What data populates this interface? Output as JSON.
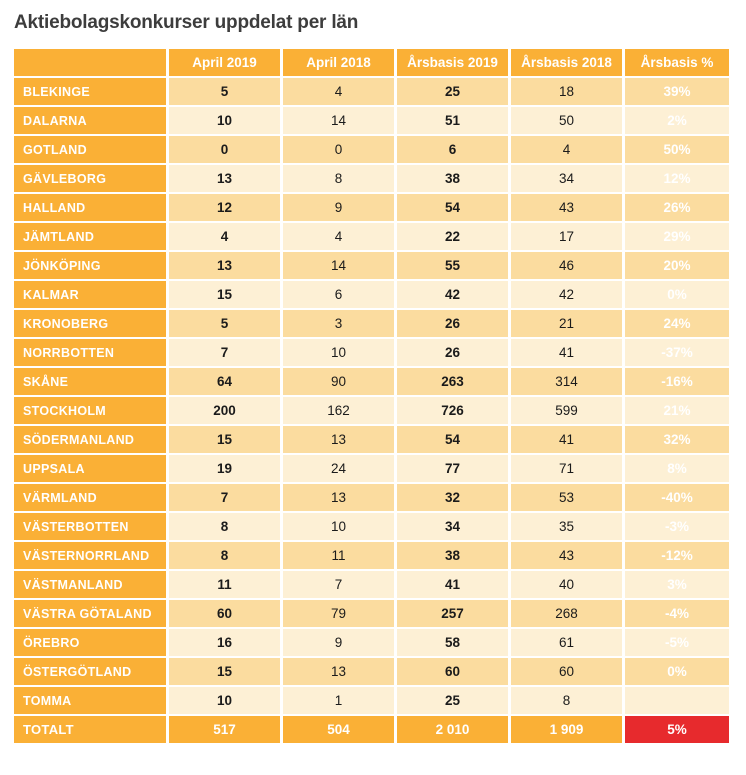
{
  "title": "Aktiebolagskonkurser uppdelat per län",
  "colors": {
    "orange": "#FAB036",
    "row_dark": "#FBDC9F",
    "row_light": "#FDF0D5",
    "red": "#E72A2D",
    "green": "#17A04C"
  },
  "chart_data": {
    "type": "table",
    "title": "Aktiebolagskonkurser uppdelat per län",
    "columns": [
      "April 2019",
      "April 2018",
      "Årsbasis 2019",
      "Årsbasis 2018",
      "Årsbasis %"
    ],
    "rows": [
      {
        "label": "BLEKINGE",
        "values": [
          "5",
          "4",
          "25",
          "18"
        ],
        "pct": "39%",
        "pct_status": "increase"
      },
      {
        "label": "DALARNA",
        "values": [
          "10",
          "14",
          "51",
          "50"
        ],
        "pct": "2%",
        "pct_status": "increase"
      },
      {
        "label": "GOTLAND",
        "values": [
          "0",
          "0",
          "6",
          "4"
        ],
        "pct": "50%",
        "pct_status": "increase"
      },
      {
        "label": "GÄVLEBORG",
        "values": [
          "13",
          "8",
          "38",
          "34"
        ],
        "pct": "12%",
        "pct_status": "increase"
      },
      {
        "label": "HALLAND",
        "values": [
          "12",
          "9",
          "54",
          "43"
        ],
        "pct": "26%",
        "pct_status": "increase"
      },
      {
        "label": "JÄMTLAND",
        "values": [
          "4",
          "4",
          "22",
          "17"
        ],
        "pct": "29%",
        "pct_status": "increase"
      },
      {
        "label": "JÖNKÖPING",
        "values": [
          "13",
          "14",
          "55",
          "46"
        ],
        "pct": "20%",
        "pct_status": "increase"
      },
      {
        "label": "KALMAR",
        "values": [
          "15",
          "6",
          "42",
          "42"
        ],
        "pct": "0%",
        "pct_status": "zero"
      },
      {
        "label": "KRONOBERG",
        "values": [
          "5",
          "3",
          "26",
          "21"
        ],
        "pct": "24%",
        "pct_status": "increase"
      },
      {
        "label": "NORRBOTTEN",
        "values": [
          "7",
          "10",
          "26",
          "41"
        ],
        "pct": "-37%",
        "pct_status": "decrease"
      },
      {
        "label": "SKÅNE",
        "values": [
          "64",
          "90",
          "263",
          "314"
        ],
        "pct": "-16%",
        "pct_status": "decrease"
      },
      {
        "label": "STOCKHOLM",
        "values": [
          "200",
          "162",
          "726",
          "599"
        ],
        "pct": "21%",
        "pct_status": "increase"
      },
      {
        "label": "SÖDERMANLAND",
        "values": [
          "15",
          "13",
          "54",
          "41"
        ],
        "pct": "32%",
        "pct_status": "increase"
      },
      {
        "label": "UPPSALA",
        "values": [
          "19",
          "24",
          "77",
          "71"
        ],
        "pct": "8%",
        "pct_status": "increase"
      },
      {
        "label": "VÄRMLAND",
        "values": [
          "7",
          "13",
          "32",
          "53"
        ],
        "pct": "-40%",
        "pct_status": "decrease"
      },
      {
        "label": "VÄSTERBOTTEN",
        "values": [
          "8",
          "10",
          "34",
          "35"
        ],
        "pct": "-3%",
        "pct_status": "decrease"
      },
      {
        "label": "VÄSTERNORRLAND",
        "values": [
          "8",
          "11",
          "38",
          "43"
        ],
        "pct": "-12%",
        "pct_status": "decrease"
      },
      {
        "label": "VÄSTMANLAND",
        "values": [
          "11",
          "7",
          "41",
          "40"
        ],
        "pct": "3%",
        "pct_status": "increase"
      },
      {
        "label": "VÄSTRA GÖTALAND",
        "values": [
          "60",
          "79",
          "257",
          "268"
        ],
        "pct": "-4%",
        "pct_status": "decrease"
      },
      {
        "label": "ÖREBRO",
        "values": [
          "16",
          "9",
          "58",
          "61"
        ],
        "pct": "-5%",
        "pct_status": "decrease"
      },
      {
        "label": "ÖSTERGÖTLAND",
        "values": [
          "15",
          "13",
          "60",
          "60"
        ],
        "pct": "0%",
        "pct_status": "zero"
      },
      {
        "label": "TOMMA",
        "values": [
          "10",
          "1",
          "25",
          "8"
        ],
        "pct": "",
        "pct_status": "none"
      }
    ],
    "total_row": {
      "label": "TOTALT",
      "values": [
        "517",
        "504",
        "2 010",
        "1 909"
      ],
      "pct": "5%",
      "pct_status": "increase"
    }
  }
}
